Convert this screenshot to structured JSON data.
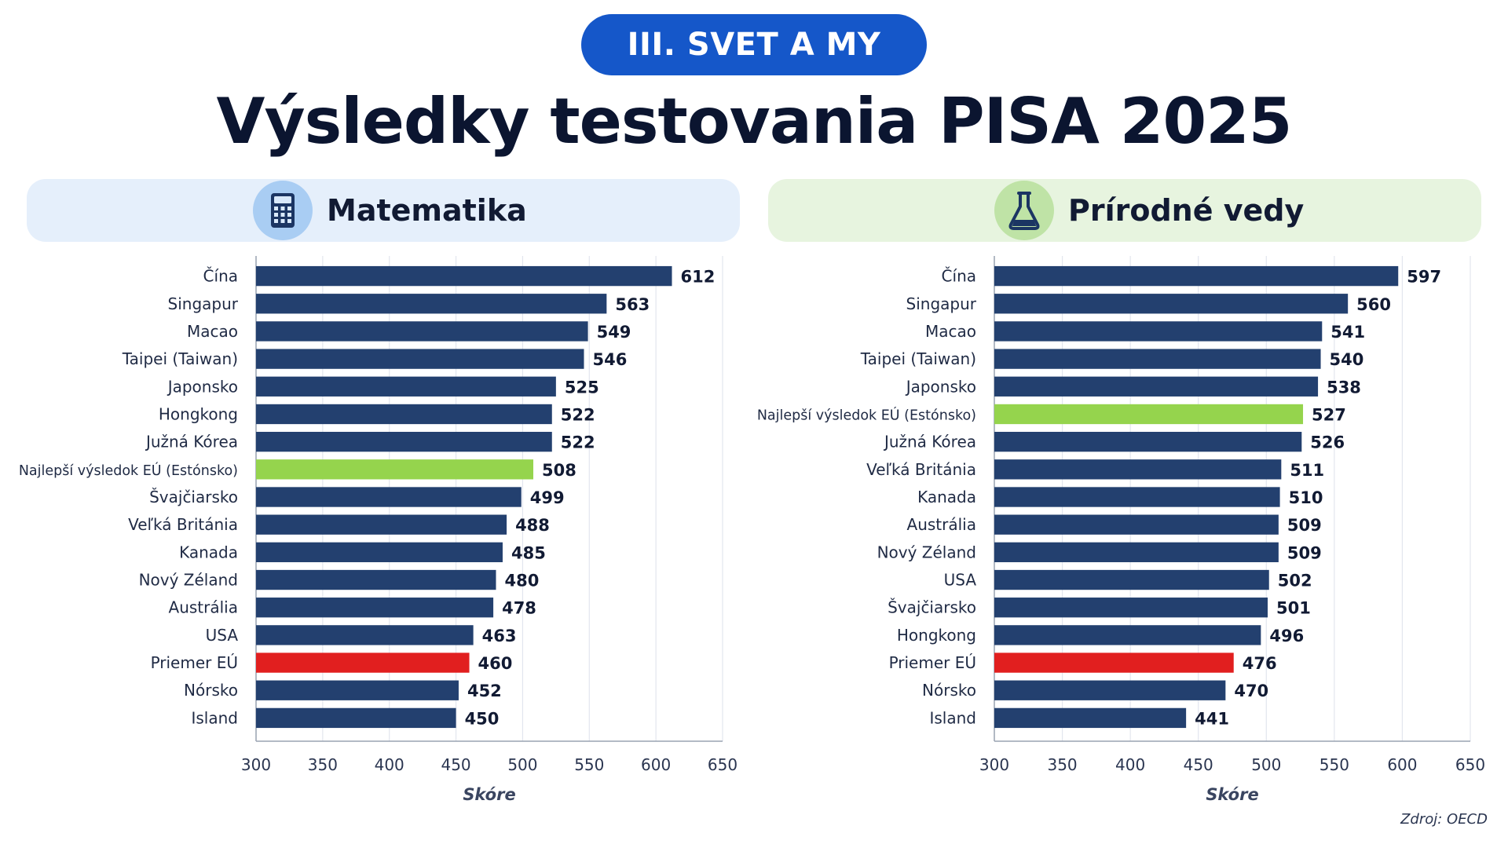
{
  "header": {
    "section_label": "III. SVET A MY",
    "title": "Výsledky testovania PISA 2025"
  },
  "source": "Zdroj: OECD",
  "colors": {
    "bar_default": "#23406f",
    "bar_eu_best": "#95d44d",
    "bar_eu_average": "#e11f1f",
    "pill": "#1557c9"
  },
  "panels": [
    {
      "title": "Matematika",
      "icon": "calculator-icon"
    },
    {
      "title": "Prírodné vedy",
      "icon": "flask-icon"
    }
  ],
  "chart_data": [
    {
      "type": "bar",
      "orientation": "horizontal",
      "title": "Matematika",
      "xlabel": "Skóre",
      "xlim": [
        300,
        650
      ],
      "xticks": [
        300,
        350,
        400,
        450,
        500,
        550,
        600,
        650
      ],
      "grid": true,
      "categories": [
        "Čína",
        "Singapur",
        "Macao",
        "Taipei (Taiwan)",
        "Japonsko",
        "Hongkong",
        "Južná Kórea",
        "Najlepší výsledok EÚ (Estónsko)",
        "Švajčiarsko",
        "Veľká Británia",
        "Kanada",
        "Nový Zéland",
        "Austrália",
        "USA",
        "Priemer EÚ",
        "Nórsko",
        "Island"
      ],
      "values": [
        612,
        563,
        549,
        546,
        525,
        522,
        522,
        508,
        499,
        488,
        485,
        480,
        478,
        463,
        460,
        452,
        450
      ],
      "highlights": {
        "Najlepší výsledok EÚ (Estónsko)": "eu_best",
        "Priemer EÚ": "eu_average"
      }
    },
    {
      "type": "bar",
      "orientation": "horizontal",
      "title": "Prírodné vedy",
      "xlabel": "Skóre",
      "xlim": [
        300,
        650
      ],
      "xticks": [
        300,
        350,
        400,
        450,
        500,
        550,
        600,
        650
      ],
      "grid": true,
      "categories": [
        "Čína",
        "Singapur",
        "Macao",
        "Taipei (Taiwan)",
        "Japonsko",
        "Najlepší výsledok EÚ (Estónsko)",
        "Južná Kórea",
        "Veľká Británia",
        "Kanada",
        "Austrália",
        "Nový Zéland",
        "USA",
        "Švajčiarsko",
        "Hongkong",
        "Priemer EÚ",
        "Nórsko",
        "Island"
      ],
      "values": [
        597,
        560,
        541,
        540,
        538,
        527,
        526,
        511,
        510,
        509,
        509,
        502,
        501,
        496,
        476,
        470,
        441
      ],
      "highlights": {
        "Najlepší výsledok EÚ (Estónsko)": "eu_best",
        "Priemer EÚ": "eu_average"
      }
    }
  ]
}
